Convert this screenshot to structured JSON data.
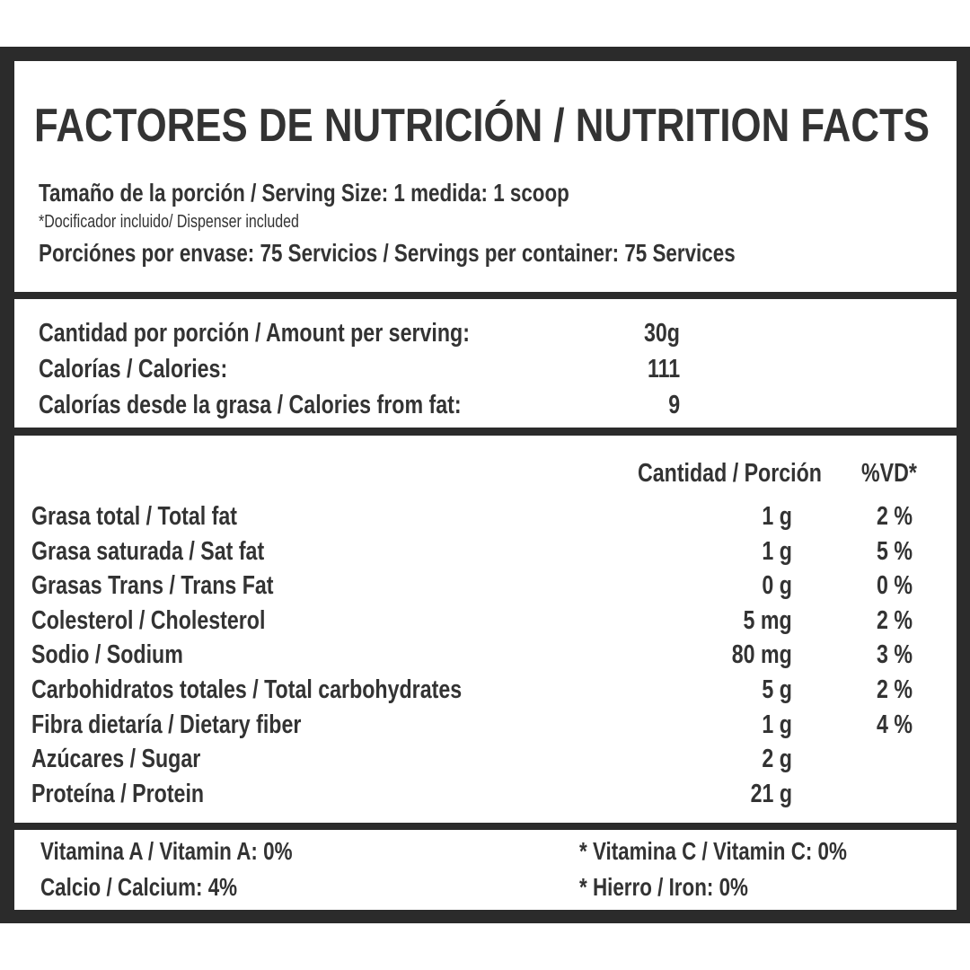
{
  "header": {
    "title": "FACTORES DE NUTRICIÓN / NUTRITION FACTS",
    "serving_size": "Tamaño de la porción / Serving Size: 1 medida: 1 scoop",
    "dispenser_note": "*Docificador incluido/ Dispenser included",
    "servings_per_container": "Porciónes por envase: 75 Servicios / Servings per container: 75 Services"
  },
  "amounts": {
    "rows": [
      [
        "Cantidad por porción / Amount per serving:",
        "30g"
      ],
      [
        "Calorías / Calories:",
        "111"
      ],
      [
        "Calorías desde la grasa / Calories from fat:",
        "9"
      ]
    ]
  },
  "table": {
    "headers": [
      "Cantidad / Porción",
      "%VD*"
    ],
    "rows": [
      [
        "Grasa total / Total fat",
        "1 g",
        "2 %"
      ],
      [
        "Grasa saturada / Sat fat",
        "1 g",
        "5 %"
      ],
      [
        "Grasas Trans / Trans Fat",
        "0 g",
        "0 %"
      ],
      [
        "Colesterol / Cholesterol",
        "5 mg",
        "2 %"
      ],
      [
        "Sodio / Sodium",
        "80 mg",
        "3 %"
      ],
      [
        "Carbohidratos totales / Total carbohydrates",
        "5 g",
        "2 %"
      ],
      [
        "Fibra dietaría / Dietary fiber",
        "1 g",
        "4 %"
      ],
      [
        "Azúcares / Sugar",
        "2 g"
      ],
      [
        "Proteína / Protein",
        "21 g"
      ]
    ]
  },
  "vitamins": {
    "left": [
      "Vitamina A / Vitamin A: 0%",
      "Calcio / Calcium: 4%"
    ],
    "right": [
      "* Vitamina C / Vitamin C: 0%",
      "* Hierro / Iron: 0%"
    ]
  }
}
